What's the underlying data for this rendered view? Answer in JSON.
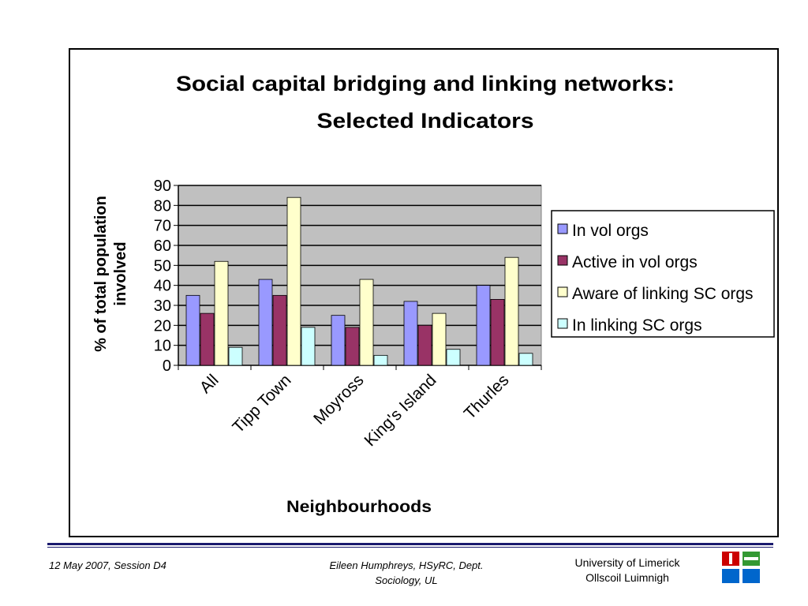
{
  "chart_data": {
    "type": "bar",
    "title_line1": "Social capital bridging and linking networks:",
    "title_line2": "Selected Indicators",
    "xlabel": "Neighbourhoods",
    "ylabel_line1": "% of total population",
    "ylabel_line2": "involved",
    "categories": [
      "All",
      "Tipp Town",
      "Moyross",
      "King's Island",
      "Thurles"
    ],
    "ylim": [
      0,
      90
    ],
    "yticks": [
      "0",
      "10",
      "20",
      "30",
      "40",
      "50",
      "60",
      "70",
      "80",
      "90"
    ],
    "grid": true,
    "legend_position": "right",
    "series": [
      {
        "name": "In vol orgs",
        "color": "#9999ff",
        "values": [
          35,
          43,
          25,
          32,
          40
        ]
      },
      {
        "name": "Active in vol orgs",
        "color": "#993366",
        "values": [
          26,
          35,
          19,
          20,
          33
        ]
      },
      {
        "name": "Aware of linking SC orgs",
        "color": "#ffffcc",
        "values": [
          52,
          84,
          43,
          26,
          54
        ]
      },
      {
        "name": "In linking SC orgs",
        "color": "#ccffff",
        "values": [
          9,
          19,
          5,
          8,
          6
        ]
      }
    ],
    "plot_bg": "#c0c0c0"
  },
  "footer": {
    "date_session": "12 May 2007, Session D4",
    "author_line1": "Eileen Humphreys, HSyRC, Dept.",
    "author_line2": "Sociology, UL",
    "university_line1": "University of Limerick",
    "university_line2": "Ollscoil Luimnigh"
  },
  "logo": {
    "icon": "university-logo-icon",
    "colors": [
      "#cc0000",
      "#0066cc",
      "#339933"
    ]
  }
}
